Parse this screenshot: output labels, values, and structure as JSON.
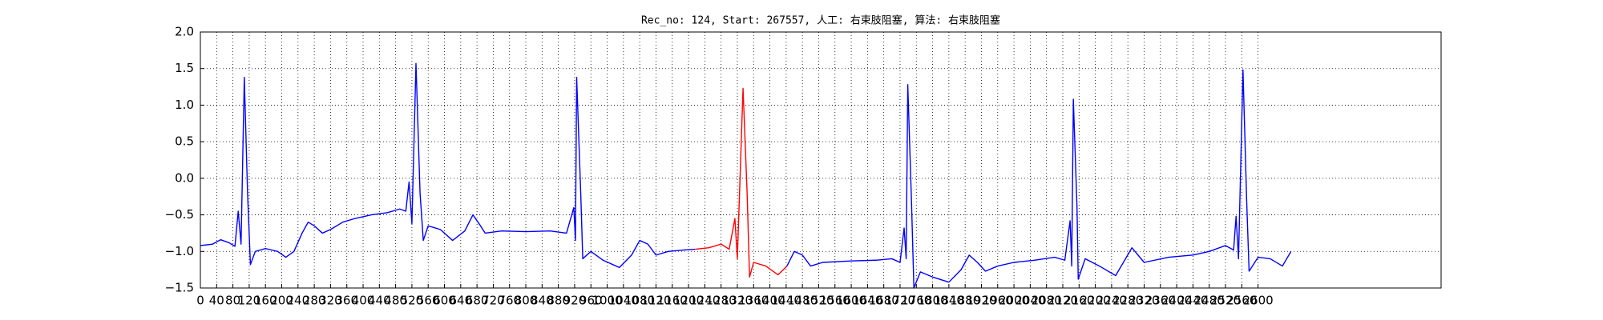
{
  "chart_data": {
    "type": "line",
    "title": "Rec_no: 124, Start: 267557, 人工: 右束肢阻塞, 算法: 右束肢阻塞",
    "xlim": [
      0,
      3050
    ],
    "xticks": [
      0,
      40,
      80,
      120,
      160,
      200,
      240,
      280,
      320,
      360,
      400,
      440,
      480,
      520,
      560,
      600,
      640,
      680,
      720,
      760,
      800,
      840,
      880,
      920,
      960,
      1000,
      1040,
      1080,
      1120,
      1160,
      1200,
      1240,
      1280,
      1320,
      1360,
      1400,
      1440,
      1480,
      1520,
      1560,
      1600,
      1640,
      1680,
      1720,
      1760,
      1800,
      1840,
      1880,
      1920,
      1960,
      2000,
      2040,
      2080,
      2120,
      2160,
      2200,
      2240,
      2280,
      2320,
      2360,
      2400,
      2440,
      2480,
      2520,
      2560,
      2600
    ],
    "ylim": [
      -1.5,
      2
    ],
    "yticks": [
      {
        "value": -1.5,
        "label": "−1.5"
      },
      {
        "value": -1,
        "label": "−1.0"
      },
      {
        "value": -0.5,
        "label": "−0.5"
      },
      {
        "value": 0,
        "label": "0.0"
      },
      {
        "value": 0.5,
        "label": "0.5"
      },
      {
        "value": 1,
        "label": "1.0"
      },
      {
        "value": 1.5,
        "label": "1.5"
      },
      {
        "value": 2,
        "label": "2.0"
      }
    ],
    "grid": true,
    "series": [
      {
        "color": "#0000ff",
        "x": [
          0,
          30,
          50,
          70,
          85,
          93,
          100,
          108,
          116,
          123,
          135,
          160,
          190,
          210,
          230,
          250,
          265,
          280,
          300,
          320,
          350,
          380,
          420,
          460,
          490,
          505,
          513,
          520,
          530,
          540,
          548,
          560,
          590,
          620,
          650,
          670,
          685,
          700,
          740,
          800,
          860,
          900,
          918,
          922,
          925,
          935,
          940,
          960,
          990,
          1030,
          1060,
          1080,
          1100,
          1120,
          1150,
          1190,
          1216,
          null,
          1442,
          1460,
          1480,
          1500,
          1530,
          1600,
          1660,
          1700,
          1720,
          1730,
          1735,
          1739,
          1748,
          1754,
          1770,
          1800,
          1840,
          1870,
          1890,
          1910,
          1930,
          1960,
          2000,
          2050,
          2100,
          2125,
          2138,
          2142,
          2146,
          2155,
          2158,
          2175,
          2210,
          2250,
          2290,
          2320,
          2380,
          2440,
          2480,
          2520,
          2540,
          2546,
          2552,
          2563,
          2572,
          2578,
          2600,
          2630,
          2660,
          2681
        ],
        "values": [
          -0.92,
          -0.9,
          -0.84,
          -0.88,
          -0.93,
          -0.45,
          -0.9,
          1.38,
          -0.2,
          -1.18,
          -1.0,
          -0.96,
          -1.0,
          -1.08,
          -1.0,
          -0.75,
          -0.6,
          -0.65,
          -0.75,
          -0.7,
          -0.6,
          -0.55,
          -0.5,
          -0.47,
          -0.42,
          -0.45,
          -0.05,
          -0.62,
          1.57,
          -0.2,
          -0.85,
          -0.65,
          -0.7,
          -0.85,
          -0.72,
          -0.5,
          -0.62,
          -0.75,
          -0.72,
          -0.73,
          -0.72,
          -0.75,
          -0.4,
          -0.85,
          1.38,
          -0.2,
          -1.1,
          -1.0,
          -1.12,
          -1.22,
          -1.05,
          -0.85,
          -0.9,
          -1.05,
          -1.0,
          -0.98,
          -0.97,
          null,
          -1.2,
          -1.0,
          -1.05,
          -1.2,
          -1.15,
          -1.13,
          -1.12,
          -1.1,
          -1.15,
          -0.68,
          -1.1,
          1.28,
          -0.3,
          -1.5,
          -1.28,
          -1.35,
          -1.42,
          -1.25,
          -1.05,
          -1.15,
          -1.27,
          -1.2,
          -1.15,
          -1.12,
          -1.08,
          -1.12,
          -0.58,
          -1.2,
          1.08,
          -0.4,
          -1.38,
          -1.1,
          -1.2,
          -1.33,
          -0.95,
          -1.15,
          -1.08,
          -1.05,
          -1.0,
          -0.92,
          -0.98,
          -0.52,
          -1.1,
          1.48,
          -0.3,
          -1.27,
          -1.08,
          -1.1,
          -1.2,
          -1.0
        ]
      },
      {
        "color": "#ff0000",
        "x": [
          1216,
          1250,
          1280,
          1300,
          1314,
          1320,
          1334,
          1344,
          1350,
          1360,
          1390,
          1420,
          1442
        ],
        "values": [
          -0.97,
          -0.95,
          -0.9,
          -0.97,
          -0.55,
          -1.1,
          1.23,
          -0.2,
          -1.35,
          -1.15,
          -1.2,
          -1.32,
          -1.2
        ]
      }
    ]
  }
}
